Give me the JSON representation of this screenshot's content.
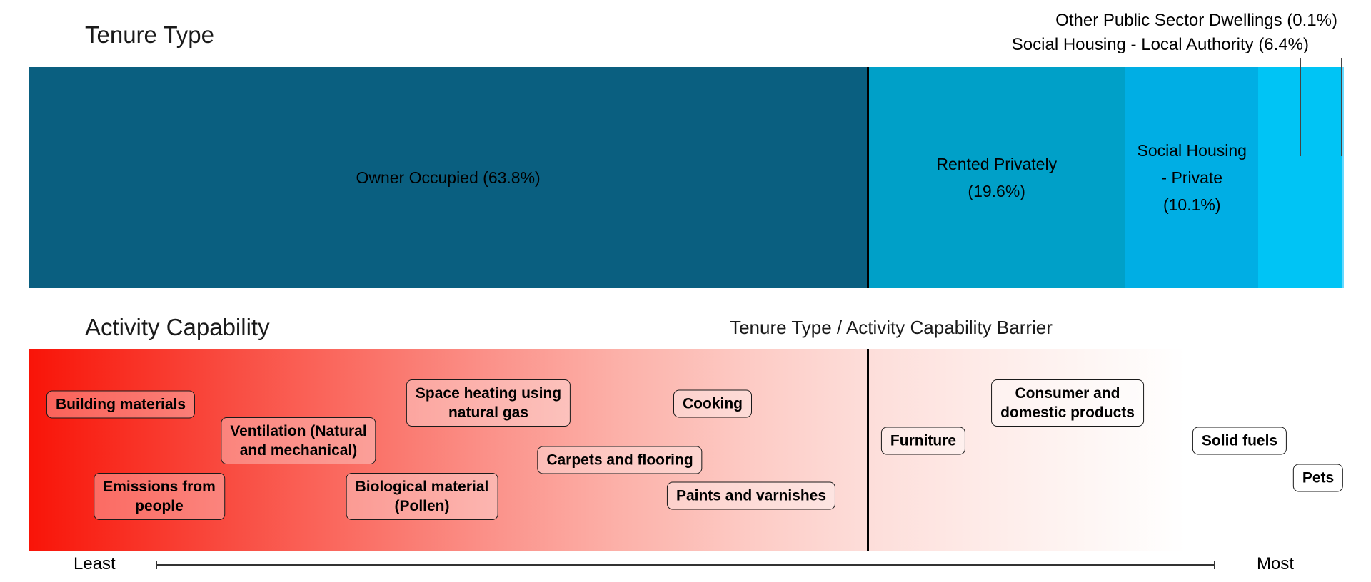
{
  "tenure": {
    "title": "Tenure Type",
    "segments": [
      {
        "name": "Owner Occupied",
        "pct": 63.8,
        "color": "#0a5f80",
        "label": "Owner Occupied (63.8%)"
      },
      {
        "name": "Rented Privately",
        "pct": 19.6,
        "color": "#00a0c8",
        "label": "Rented Privately\n(19.6%)"
      },
      {
        "name": "Social Housing - Private",
        "pct": 10.1,
        "color": "#00aee4",
        "label": "Social Housing\n- Private\n(10.1%)"
      },
      {
        "name": "Social Housing - Local Authority",
        "pct": 6.4,
        "color": "#00c4f5",
        "label": ""
      },
      {
        "name": "Other Public Sector Dwellings",
        "pct": 0.1,
        "color": "#66d9ff",
        "label": ""
      }
    ],
    "callouts": [
      "Other Public Sector Dwellings (0.1%)",
      "Social Housing - Local Authority (6.4%)"
    ]
  },
  "activity": {
    "title": "Activity Capability",
    "subtitle": "Tenure Type / Activity Capability Barrier",
    "axis": {
      "least": "Least",
      "most": "Most"
    },
    "items": [
      {
        "label": "Building materials"
      },
      {
        "label": "Ventilation (Natural\nand mechanical)"
      },
      {
        "label": "Emissions from\npeople"
      },
      {
        "label": "Space heating using\nnatural gas"
      },
      {
        "label": "Biological material\n(Pollen)"
      },
      {
        "label": "Carpets and flooring"
      },
      {
        "label": "Cooking"
      },
      {
        "label": "Paints and varnishes"
      },
      {
        "label": "Furniture"
      },
      {
        "label": "Consumer and\ndomestic products"
      },
      {
        "label": "Solid fuels"
      },
      {
        "label": "Pets"
      }
    ]
  },
  "chart_data": [
    {
      "type": "bar",
      "title": "Tenure Type",
      "orientation": "horizontal-stacked",
      "categories": [
        "Owner Occupied",
        "Rented Privately",
        "Social Housing - Private",
        "Social Housing - Local Authority",
        "Other Public Sector Dwellings"
      ],
      "values": [
        63.8,
        19.6,
        10.1,
        6.4,
        0.1
      ],
      "unit": "percent",
      "colors": [
        "#0a5f80",
        "#00a0c8",
        "#00aee4",
        "#00c4f5",
        "#66d9ff"
      ]
    },
    {
      "type": "scatter",
      "title": "Activity Capability",
      "subtitle": "Tenure Type / Activity Capability Barrier",
      "xlabel": "Activity capability barrier (Least to Most)",
      "x_range": [
        0,
        1
      ],
      "scale_colors": [
        "#f91408",
        "#ffffff"
      ],
      "items": [
        {
          "label": "Building materials",
          "x": 0.07
        },
        {
          "label": "Emissions from people",
          "x": 0.1
        },
        {
          "label": "Ventilation (Natural and mechanical)",
          "x": 0.21
        },
        {
          "label": "Biological material (Pollen)",
          "x": 0.3
        },
        {
          "label": "Space heating using natural gas",
          "x": 0.35
        },
        {
          "label": "Carpets and flooring",
          "x": 0.45
        },
        {
          "label": "Cooking",
          "x": 0.52
        },
        {
          "label": "Paints and varnishes",
          "x": 0.55
        },
        {
          "label": "Furniture",
          "x": 0.68
        },
        {
          "label": "Consumer and domestic products",
          "x": 0.79
        },
        {
          "label": "Solid fuels",
          "x": 0.92
        },
        {
          "label": "Pets",
          "x": 0.98
        }
      ]
    }
  ]
}
